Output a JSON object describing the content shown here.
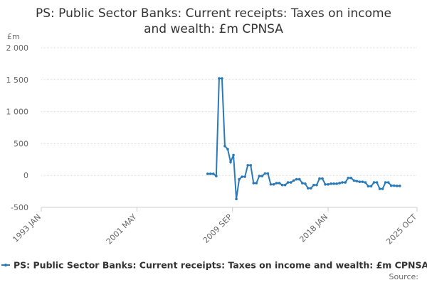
{
  "chart_data": {
    "type": "line",
    "title": "PS: Public Sector Banks: Current receipts: Taxes on income and wealth: £m CPNSA",
    "y_label": "£m",
    "source": "Source:",
    "x": [
      "2007 JUL",
      "2007 OCT",
      "2008 JAN",
      "2008 APR",
      "2008 JUL",
      "2008 OCT",
      "2009 JAN",
      "2009 APR",
      "2009 JUL",
      "2009 OCT",
      "2010 JAN",
      "2010 APR",
      "2010 JUL",
      "2010 OCT",
      "2011 JAN",
      "2011 APR",
      "2011 JUL",
      "2011 OCT",
      "2012 JAN",
      "2012 APR",
      "2012 JUL",
      "2012 OCT",
      "2013 JAN",
      "2013 APR",
      "2013 JUL",
      "2013 OCT",
      "2014 JAN",
      "2014 APR",
      "2014 JUL",
      "2014 OCT",
      "2015 JAN",
      "2015 APR",
      "2015 JUL",
      "2015 OCT",
      "2016 JAN",
      "2016 APR",
      "2016 JUL",
      "2016 OCT",
      "2017 JAN",
      "2017 APR",
      "2017 JUL",
      "2017 OCT",
      "2018 JAN",
      "2018 APR",
      "2018 JUL",
      "2018 OCT",
      "2019 JAN",
      "2019 APR",
      "2019 JUL",
      "2019 OCT",
      "2020 JAN",
      "2020 APR",
      "2020 JUL",
      "2020 OCT",
      "2021 JAN",
      "2021 APR",
      "2021 JUL",
      "2021 OCT",
      "2022 JAN",
      "2022 APR",
      "2022 JUL",
      "2022 OCT",
      "2023 JAN",
      "2023 APR",
      "2023 JUL",
      "2023 OCT",
      "2024 JAN",
      "2024 APR"
    ],
    "series": [
      {
        "name": "PS: Public Sector Banks: Current receipts: Taxes on income and wealth: £m CPNSA",
        "color": "#2a7ab9",
        "values": [
          25,
          25,
          25,
          -10,
          1520,
          1520,
          460,
          410,
          210,
          320,
          -370,
          -60,
          -20,
          -20,
          160,
          160,
          -120,
          -120,
          -10,
          -10,
          30,
          30,
          -140,
          -140,
          -120,
          -120,
          -150,
          -150,
          -110,
          -110,
          -80,
          -60,
          -60,
          -120,
          -130,
          -200,
          -200,
          -150,
          -150,
          -50,
          -50,
          -140,
          -140,
          -130,
          -130,
          -130,
          -120,
          -110,
          -110,
          -40,
          -40,
          -80,
          -90,
          -100,
          -100,
          -110,
          -170,
          -170,
          -110,
          -110,
          -210,
          -210,
          -110,
          -110,
          -160,
          -160,
          -165,
          -165
        ]
      }
    ],
    "xlim": [
      "1993 JAN",
      "2025 OCT"
    ],
    "xticks": [
      "1993 JAN",
      "2001 MAY",
      "2009 SEP",
      "2018 JAN",
      "2025 OCT"
    ],
    "ylim": [
      -500,
      2000
    ],
    "yticks": [
      -500,
      0,
      500,
      {
        "value": 1000,
        "label": "1 000"
      },
      {
        "value": 1500,
        "label": "1 500"
      },
      {
        "value": 2000,
        "label": "2 000"
      }
    ],
    "grid": true
  }
}
